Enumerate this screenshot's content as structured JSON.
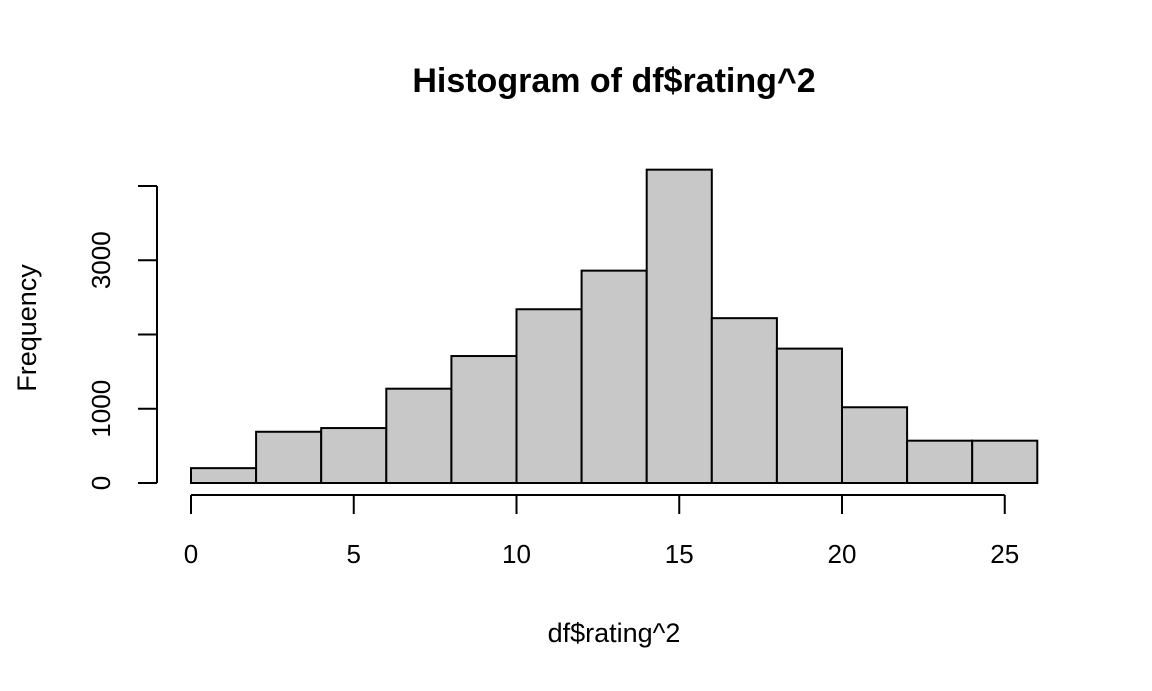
{
  "chart_data": {
    "type": "bar",
    "title": "Histogram of df$rating^2",
    "xlabel": "df$rating^2",
    "ylabel": "Frequency",
    "bins": [
      {
        "start": 0,
        "end": 2,
        "count": 200
      },
      {
        "start": 2,
        "end": 4,
        "count": 690
      },
      {
        "start": 4,
        "end": 6,
        "count": 740
      },
      {
        "start": 6,
        "end": 8,
        "count": 1270
      },
      {
        "start": 8,
        "end": 10,
        "count": 1710
      },
      {
        "start": 10,
        "end": 12,
        "count": 2340
      },
      {
        "start": 12,
        "end": 14,
        "count": 2860
      },
      {
        "start": 14,
        "end": 16,
        "count": 4220
      },
      {
        "start": 16,
        "end": 18,
        "count": 2220
      },
      {
        "start": 18,
        "end": 20,
        "count": 1810
      },
      {
        "start": 20,
        "end": 22,
        "count": 1020
      },
      {
        "start": 22,
        "end": 24,
        "count": 570
      },
      {
        "start": 24,
        "end": 26,
        "count": 570
      }
    ],
    "xlim": [
      0,
      26
    ],
    "ylim": [
      0,
      4000
    ],
    "x_ticks": [
      0,
      5,
      10,
      15,
      20,
      25
    ],
    "y_ticks": [
      0,
      1000,
      2000,
      3000,
      4000
    ],
    "y_tick_labels": [
      "0",
      "1000",
      "",
      "3000",
      ""
    ],
    "bar_color": "#c8c8c8",
    "edge_color": "#000000",
    "grid": false
  }
}
